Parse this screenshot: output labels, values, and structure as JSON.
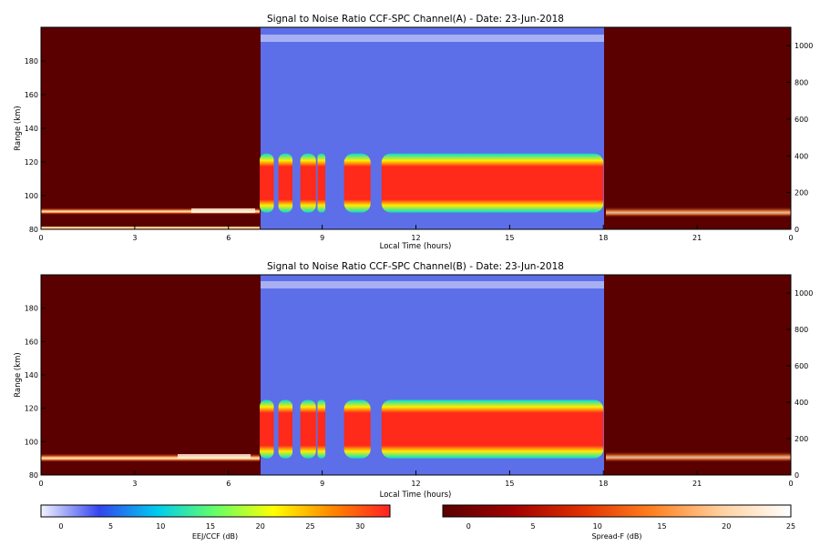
{
  "chart_data": [
    {
      "type": "heatmap",
      "title": "Signal to Noise Ratio CCF-SPC Channel(A) - Date: 23-Jun-2018",
      "xlabel": "Local Time (hours)",
      "ylabel": "Range (km)",
      "x_ticks": [
        "0",
        "3",
        "6",
        "9",
        "12",
        "15",
        "18",
        "21",
        "0"
      ],
      "y_ticks": [
        "80",
        "100",
        "120",
        "140",
        "160",
        "180"
      ],
      "y2_ticks": [
        "0",
        "200",
        "400",
        "600",
        "800",
        "1000"
      ],
      "xlim_hours": [
        0,
        24
      ],
      "ylim_km": [
        80,
        200
      ],
      "y2lim_km": [
        0,
        1100
      ],
      "ccf_window_hours": [
        7,
        18
      ],
      "layer_range_km": [
        90,
        125
      ],
      "blobs_hours": [
        [
          7.0,
          7.45
        ],
        [
          7.6,
          8.05
        ],
        [
          8.3,
          8.8
        ],
        [
          8.85,
          9.1
        ],
        [
          9.7,
          10.55
        ],
        [
          10.9,
          18.0
        ]
      ]
    },
    {
      "type": "heatmap",
      "title": "Signal to Noise Ratio CCF-SPC Channel(B) - Date: 23-Jun-2018",
      "xlabel": "Local Time (hours)",
      "ylabel": "Range (km)",
      "x_ticks": [
        "0",
        "3",
        "6",
        "9",
        "12",
        "15",
        "18",
        "21",
        "0"
      ],
      "y_ticks": [
        "80",
        "100",
        "120",
        "140",
        "160",
        "180"
      ],
      "y2_ticks": [
        "0",
        "200",
        "400",
        "600",
        "800",
        "1000"
      ],
      "xlim_hours": [
        0,
        24
      ],
      "ylim_km": [
        80,
        200
      ],
      "y2lim_km": [
        0,
        1100
      ],
      "ccf_window_hours": [
        7,
        18
      ],
      "layer_range_km": [
        90,
        125
      ],
      "blobs_hours": [
        [
          7.0,
          7.45
        ],
        [
          7.6,
          8.05
        ],
        [
          8.3,
          8.8
        ],
        [
          8.85,
          9.1
        ],
        [
          9.7,
          10.55
        ],
        [
          10.9,
          18.0
        ]
      ]
    }
  ],
  "colorbars": [
    {
      "label": "EEJ/CCF (dB)",
      "ticks": [
        "0",
        "5",
        "10",
        "15",
        "20",
        "25",
        "30"
      ],
      "range": [
        -2,
        33
      ],
      "colors": [
        "#f4f4ff",
        "#3344ee",
        "#00ccee",
        "#66ff66",
        "#ffff00",
        "#ff8800",
        "#ff2222"
      ]
    },
    {
      "label": "Spread-F (dB)",
      "ticks": [
        "0",
        "5",
        "10",
        "15",
        "20",
        "25"
      ],
      "range": [
        -2,
        25
      ],
      "colors": [
        "#5a0000",
        "#a00000",
        "#e03000",
        "#ff8020",
        "#ffd0a0",
        "#ffffff"
      ]
    }
  ]
}
